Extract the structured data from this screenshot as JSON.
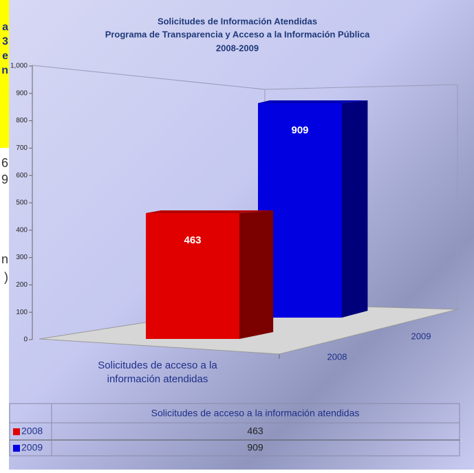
{
  "chart_data": {
    "type": "bar",
    "title": "Solicitudes de Información Atendidas",
    "subtitle": "Programa de Transparencia y Acceso a la Información Pública",
    "period": "2008-2009",
    "categories": [
      "Solicitudes de acceso a la información atendidas"
    ],
    "series": [
      {
        "name": "2008",
        "color": "#e00000",
        "values": [
          463
        ]
      },
      {
        "name": "2009",
        "color": "#0000e0",
        "values": [
          909
        ]
      }
    ],
    "ylim": [
      0,
      1000
    ],
    "yticks": [
      0,
      100,
      200,
      300,
      400,
      500,
      600,
      700,
      800,
      900,
      {
        "value": 1000,
        "label": "1,000"
      }
    ],
    "data_table": true
  },
  "side_text": {
    "highlighted": [
      "a",
      "3",
      "e",
      "n"
    ],
    "plain": [
      "6",
      "9",
      "n",
      ")"
    ]
  }
}
